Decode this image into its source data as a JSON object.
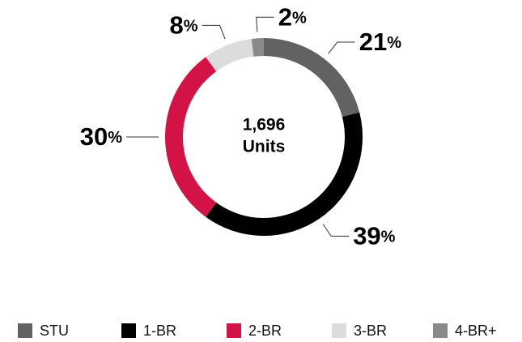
{
  "chart_data": {
    "type": "donut",
    "categories": [
      "STU",
      "1-BR",
      "2-BR",
      "3-BR",
      "4-BR+"
    ],
    "values": [
      21,
      39,
      30,
      8,
      2
    ],
    "value_labels": [
      "21%",
      "39%",
      "30%",
      "8%",
      "2%"
    ],
    "colors": [
      "#626262",
      "#000000",
      "#d31245",
      "#dcdcdc",
      "#8a8a8a"
    ],
    "center_text": [
      "1,696",
      "Units"
    ]
  }
}
